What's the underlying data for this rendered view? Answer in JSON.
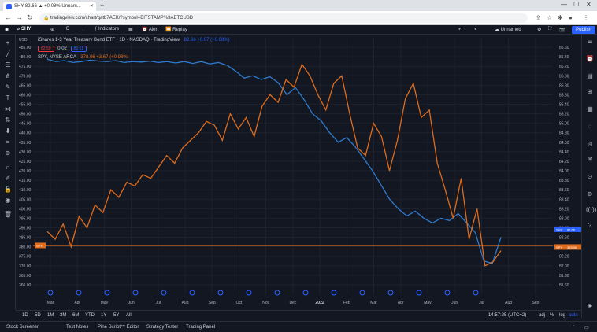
{
  "browser": {
    "tab_title": "SHY 82.66 ▲ +0.08% Unnam...",
    "tab_close": "✕",
    "new_tab": "+",
    "url": "tradingview.com/chart/gatb7AEK/?symbol=BITSTAMP%3ABTCUSD",
    "win_min": "—",
    "win_max": "☐",
    "win_close": "✕"
  },
  "toolbar": {
    "symbol": "SHY",
    "interval": "D",
    "indicators_label": "Indicators",
    "alert_label": "Alert",
    "replay_label": "Replay",
    "layout_name": "Unnamed",
    "publish_label": "Publish"
  },
  "legend": {
    "main_title": "iShares 1-3 Year Treasury Bond ETF · 1D · NASDAQ · TradingView",
    "main_value": "82.66 +0.07 (+0.08%)",
    "sell_price": "82.59",
    "spread": "0.02",
    "buy_price": "82.61",
    "compare_title": "SPY, NYSE ARCA",
    "compare_value": "378.06 +3.67 (+0.98%)"
  },
  "chart_data": {
    "type": "line",
    "currency": "USD",
    "x_labels": [
      "Mar",
      "Apr",
      "May",
      "Jun",
      "Jul",
      "Aug",
      "Sep",
      "Oct",
      "Nov",
      "Dec",
      "2022",
      "Feb",
      "Mar",
      "Apr",
      "May",
      "Jun",
      "Jul",
      "Aug",
      "Sep"
    ],
    "left_axis": {
      "label": "USD",
      "ylim": [
        355,
        490
      ],
      "ticks": [
        485,
        480,
        475,
        470,
        465,
        460,
        455,
        450,
        445,
        440,
        435,
        430,
        425,
        420,
        415,
        410,
        405,
        400,
        395,
        390,
        385,
        380,
        375,
        370,
        365,
        360
      ]
    },
    "right_axis": {
      "ylim": [
        81.4,
        86.8
      ],
      "ticks": [
        86.6,
        86.4,
        86.2,
        86.0,
        85.8,
        85.6,
        85.4,
        85.2,
        85.0,
        84.8,
        84.6,
        84.4,
        84.2,
        84.0,
        83.8,
        83.6,
        83.4,
        83.2,
        83.0,
        82.8,
        82.6,
        82.4,
        82.2,
        82.0,
        81.8,
        81.6
      ]
    },
    "series": [
      {
        "name": "SHY",
        "color": "#2e7bcf",
        "axis": "right",
        "values": [
          86.35,
          86.3,
          86.32,
          86.28,
          86.3,
          86.33,
          86.31,
          86.3,
          86.32,
          86.28,
          86.3,
          86.29,
          86.31,
          86.28,
          86.3,
          86.27,
          86.3,
          86.26,
          86.3,
          86.25,
          86.28,
          86.22,
          86.1,
          85.95,
          86.0,
          85.92,
          85.98,
          85.85,
          85.6,
          85.75,
          85.5,
          85.2,
          85.05,
          84.8,
          84.6,
          84.7,
          84.5,
          84.25,
          84.0,
          83.7,
          83.4,
          83.2,
          83.05,
          83.15,
          83.0,
          82.9,
          83.0,
          82.95,
          83.1,
          82.9,
          82.7,
          82.1,
          82.05,
          82.6
        ]
      },
      {
        "name": "SPY",
        "color": "#e06c1b",
        "axis": "left",
        "values": [
          388,
          384,
          392,
          380,
          396,
          390,
          402,
          398,
          410,
          406,
          414,
          412,
          418,
          416,
          422,
          428,
          424,
          432,
          436,
          440,
          446,
          444,
          436,
          450,
          442,
          448,
          438,
          454,
          460,
          456,
          468,
          464,
          476,
          470,
          460,
          452,
          466,
          470,
          450,
          432,
          428,
          445,
          438,
          420,
          436,
          458,
          466,
          448,
          452,
          424,
          410,
          395,
          416,
          384,
          400,
          370,
          372,
          378
        ]
      }
    ],
    "price_labels": [
      {
        "text": "SHY",
        "value": "82.66",
        "color": "#2962ff"
      },
      {
        "text": "SPY",
        "value": "378.06",
        "color": "#e06c1b"
      }
    ],
    "left_marker": "SPY",
    "grid": true,
    "legend_position": "top-left"
  },
  "bottom": {
    "ranges": [
      "1D",
      "5D",
      "1M",
      "3M",
      "6M",
      "YTD",
      "1Y",
      "5Y",
      "All"
    ],
    "time": "14:57:25 (UTC+2)",
    "adj": "adj",
    "pct": "%",
    "log": "log",
    "auto": "auto"
  },
  "panels": [
    "Stock Screener",
    "Text Notes",
    "Pine Script™ Editor",
    "Strategy Tester",
    "Trading Panel"
  ]
}
